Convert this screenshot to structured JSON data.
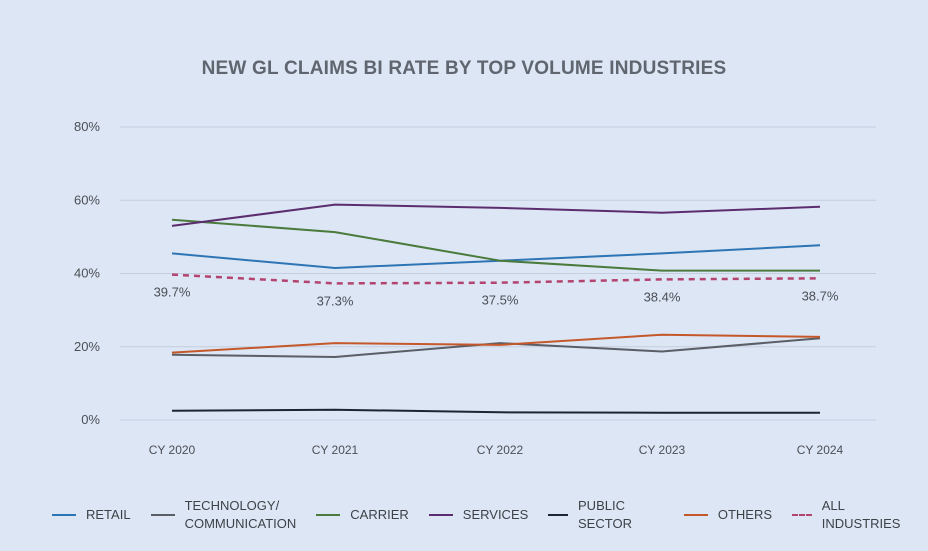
{
  "chart_data": {
    "type": "line",
    "title": "NEW GL CLAIMS BI RATE BY TOP VOLUME INDUSTRIES",
    "categories": [
      "CY 2020",
      "CY 2021",
      "CY 2022",
      "CY 2023",
      "CY 2024"
    ],
    "ylim": [
      0,
      80
    ],
    "yticks": [
      0,
      20,
      40,
      60,
      80
    ],
    "ytick_labels": [
      "0%",
      "20%",
      "40%",
      "60%",
      "80%"
    ],
    "grid": true,
    "legend_position": "bottom",
    "series": [
      {
        "name": "RETAIL",
        "color": "#2e75b6",
        "dashed": false,
        "values": [
          45.5,
          41.5,
          43.5,
          45.5,
          47.7
        ]
      },
      {
        "name": "TECHNOLOGY/\nCOMMUNICATION",
        "color": "#5a5e66",
        "dashed": false,
        "values": [
          17.8,
          17.2,
          21.0,
          18.7,
          22.3
        ]
      },
      {
        "name": "CARRIER",
        "color": "#4a7a3c",
        "dashed": false,
        "values": [
          54.7,
          51.3,
          43.5,
          40.8,
          40.8
        ]
      },
      {
        "name": "SERVICES",
        "color": "#5b2d6e",
        "dashed": false,
        "values": [
          53.0,
          58.8,
          57.9,
          56.6,
          58.2
        ]
      },
      {
        "name": "PUBLIC SECTOR",
        "color": "#1b2633",
        "dashed": false,
        "values": [
          2.5,
          2.8,
          2.1,
          2.0,
          2.0
        ]
      },
      {
        "name": "OTHERS",
        "color": "#c4582a",
        "dashed": false,
        "values": [
          18.4,
          21.0,
          20.5,
          23.3,
          22.7
        ]
      },
      {
        "name": "ALL INDUSTRIES",
        "color": "#b3436f",
        "dashed": true,
        "values": [
          39.7,
          37.3,
          37.5,
          38.4,
          38.7
        ],
        "data_labels": [
          "39.7%",
          "37.3%",
          "37.5%",
          "38.4%",
          "38.7%"
        ]
      }
    ]
  }
}
